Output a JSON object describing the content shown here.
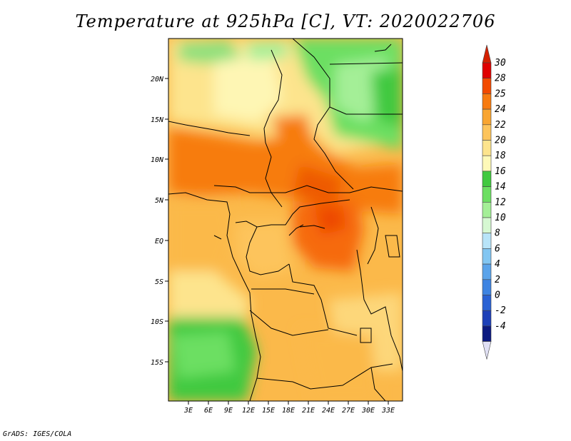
{
  "title": "Temperature at 925hPa [C], VT: 2020022706",
  "credit": "GrADS: IGES/COLA",
  "lat_labels": [
    "20N",
    "15N",
    "10N",
    "5N",
    "EQ",
    "5S",
    "10S",
    "15S"
  ],
  "lon_labels": [
    "3E",
    "6E",
    "9E",
    "12E",
    "15E",
    "18E",
    "21E",
    "24E",
    "27E",
    "30E",
    "33E"
  ],
  "colorbar": {
    "labels": [
      "30",
      "28",
      "25",
      "24",
      "22",
      "20",
      "18",
      "16",
      "14",
      "12",
      "10",
      "8",
      "6",
      "4",
      "2",
      "0",
      "-2",
      "-4"
    ],
    "colors": [
      "#e00000",
      "#f24a00",
      "#f77b10",
      "#f9a531",
      "#fdc45c",
      "#fde48d",
      "#fef9b8",
      "#41c940",
      "#6cdf62",
      "#a4ef97",
      "#d6f8d2",
      "#b8e4f8",
      "#82c6f2",
      "#5aa3ea",
      "#3e84e2",
      "#2a62d4",
      "#1d40b8",
      "#0c1a80"
    ],
    "top_arrow_color": "#d42000",
    "bottom_arrow_color": "#e0e0f4"
  }
}
